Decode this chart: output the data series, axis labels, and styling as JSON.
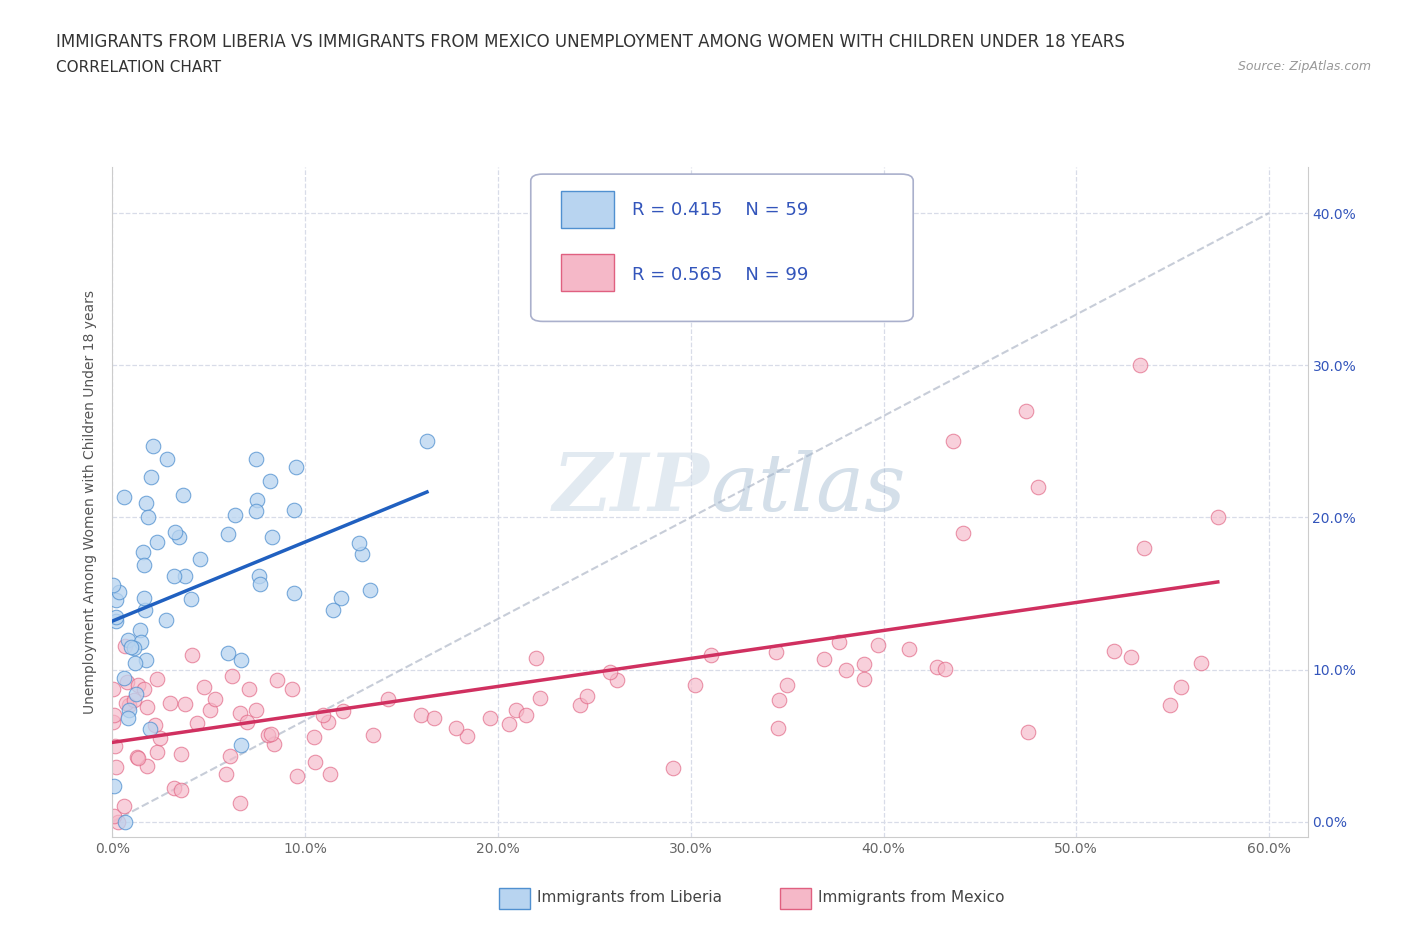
{
  "title_line1": "IMMIGRANTS FROM LIBERIA VS IMMIGRANTS FROM MEXICO UNEMPLOYMENT AMONG WOMEN WITH CHILDREN UNDER 18 YEARS",
  "title_line2": "CORRELATION CHART",
  "source": "Source: ZipAtlas.com",
  "ylabel_label": "Unemployment Among Women with Children Under 18 years",
  "legend_liberia": "Immigrants from Liberia",
  "legend_mexico": "Immigrants from Mexico",
  "R_liberia": 0.415,
  "N_liberia": 59,
  "R_mexico": 0.565,
  "N_mexico": 99,
  "xmin": 0.0,
  "xmax": 0.62,
  "ymin": -0.01,
  "ymax": 0.43,
  "color_liberia_fill": "#b8d4f0",
  "color_liberia_edge": "#5090d0",
  "color_mexico_fill": "#f5b8c8",
  "color_mexico_edge": "#e06080",
  "color_trend_liberia": "#2060c0",
  "color_trend_mexico": "#d03060",
  "color_diag": "#b0b8c8",
  "background_color": "#ffffff",
  "grid_color": "#d8dce8",
  "title_fontsize": 12,
  "subtitle_fontsize": 11,
  "axis_label_fontsize": 10,
  "tick_label_fontsize": 10,
  "legend_fontsize": 13,
  "watermark_color": "#d0dce8",
  "legend_text_color": "#3355bb",
  "right_tick_color": "#3355bb"
}
